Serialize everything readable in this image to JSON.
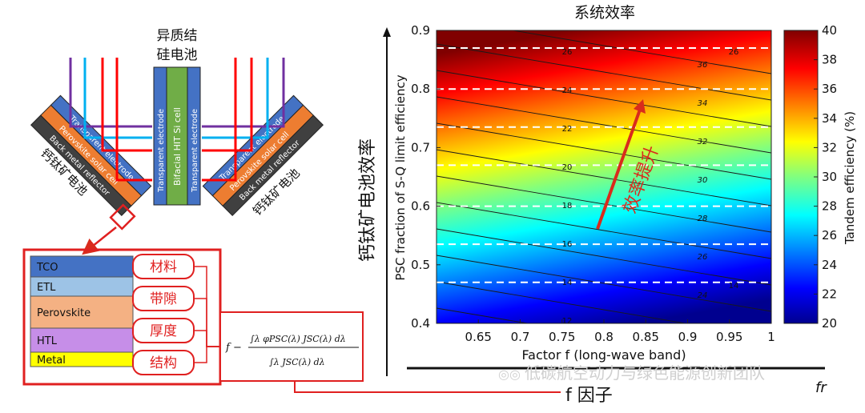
{
  "device": {
    "center_title_line1": "异质结",
    "center_title_line2": "硅电池",
    "center_layers": [
      "Transparent electrode",
      "Bifacial  HIT Si cell",
      "Transparent electrode"
    ],
    "left_stack": [
      "Transparent electrode",
      "Perovskite solar cell",
      "Back metal reflector"
    ],
    "right_stack": [
      "Transparent electrode",
      "Perovskite solar cell",
      "Back metal reflector"
    ],
    "left_label": "钙钛矿电池",
    "right_label": "钙钛矿电池",
    "colors": {
      "electrode": "#4472c4",
      "perovskite": "#ed7d31",
      "back_metal": "#404040",
      "si_cell": "#70ad47",
      "ray_purple": "#7030a0",
      "ray_blue": "#00b0f0",
      "ray_red": "#ff0000",
      "highlight": "#e02020"
    }
  },
  "layer_panel": {
    "layers": [
      {
        "name": "TCO",
        "color": "#4472c4"
      },
      {
        "name": "ETL",
        "color": "#9dc3e6"
      },
      {
        "name": "Perovskite",
        "color": "#f4b183"
      },
      {
        "name": "HTL",
        "color": "#c68ee8"
      },
      {
        "name": "Metal",
        "color": "#ffff00"
      }
    ],
    "tags": [
      "材料",
      "带隙",
      "厚度",
      "结构"
    ],
    "formula_prefix": "f −",
    "formula_numerator": "∫λ φPSC(λ) JSC(λ) dλ",
    "formula_denominator": "∫λ JSC(λ) dλ"
  },
  "chart_data": {
    "type": "heatmap",
    "title": "系统效率",
    "xlabel": "Factor f (long-wave band)",
    "ylabel": "PSC fraction of S-Q limit efficiency",
    "ylabel_zh": "钙钛矿电池效率",
    "xlim": [
      0.6,
      1.0
    ],
    "ylim": [
      0.4,
      0.9
    ],
    "xticks": [
      "0.65",
      "0.7",
      "0.75",
      "0.8",
      "0.85",
      "0.9",
      "0.95",
      "1"
    ],
    "yticks": [
      "0.4",
      "0.5",
      "0.6",
      "0.7",
      "0.8",
      "0.9"
    ],
    "colorbar": {
      "label": "Tandem efficiency (%)",
      "min": 20,
      "max": 40,
      "ticks": [
        "20",
        "22",
        "24",
        "26",
        "28",
        "30",
        "32",
        "34",
        "36",
        "38",
        "40"
      ]
    },
    "contour_levels_left": [
      "26",
      "24",
      "22",
      "20",
      "18",
      "16",
      "14",
      "12"
    ],
    "contour_levels_right": [
      "36",
      "34",
      "32",
      "30",
      "28",
      "26",
      "24"
    ],
    "contour_labels_far_right": [
      "26",
      "14"
    ],
    "dashed_lines_y": [
      0.87,
      0.8,
      0.735,
      0.67,
      0.6,
      0.535,
      0.47
    ],
    "annotation": "效率提升"
  },
  "bottom": {
    "f_label": "f 因子",
    "fr_label": "fr",
    "watermark": "低碳航空动力与绿色能源创新团队"
  }
}
